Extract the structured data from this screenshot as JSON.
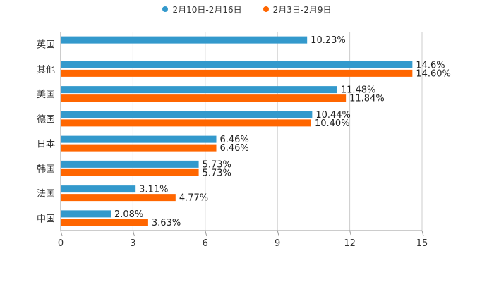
{
  "chart_data": {
    "type": "bar",
    "orientation": "horizontal",
    "title": "",
    "xlabel": "",
    "ylabel": "",
    "categories": [
      "英国",
      "其他",
      "美国",
      "德国",
      "日本",
      "韩国",
      "法国",
      "中国"
    ],
    "series": [
      {
        "name": "2月10日-2月16日",
        "color": "#3399cc",
        "values": [
          10.23,
          14.6,
          11.48,
          10.44,
          6.46,
          5.73,
          3.11,
          2.08
        ],
        "labels": [
          "10.23%",
          "14.6%",
          "11.48%",
          "10.44%",
          "6.46%",
          "5.73%",
          "3.11%",
          "2.08%"
        ]
      },
      {
        "name": "2月3日-2月9日",
        "color": "#ff6600",
        "values": [
          null,
          14.6,
          11.84,
          10.4,
          6.46,
          5.73,
          4.77,
          3.63
        ],
        "labels": [
          "",
          "14.60%",
          "11.84%",
          "10.40%",
          "6.46%",
          "5.73%",
          "4.77%",
          "3.63%"
        ]
      }
    ],
    "xlim": [
      0,
      15
    ],
    "xticks": [
      "0",
      "3",
      "6",
      "9",
      "12",
      "15"
    ],
    "grid": true,
    "legend": "top-center"
  }
}
